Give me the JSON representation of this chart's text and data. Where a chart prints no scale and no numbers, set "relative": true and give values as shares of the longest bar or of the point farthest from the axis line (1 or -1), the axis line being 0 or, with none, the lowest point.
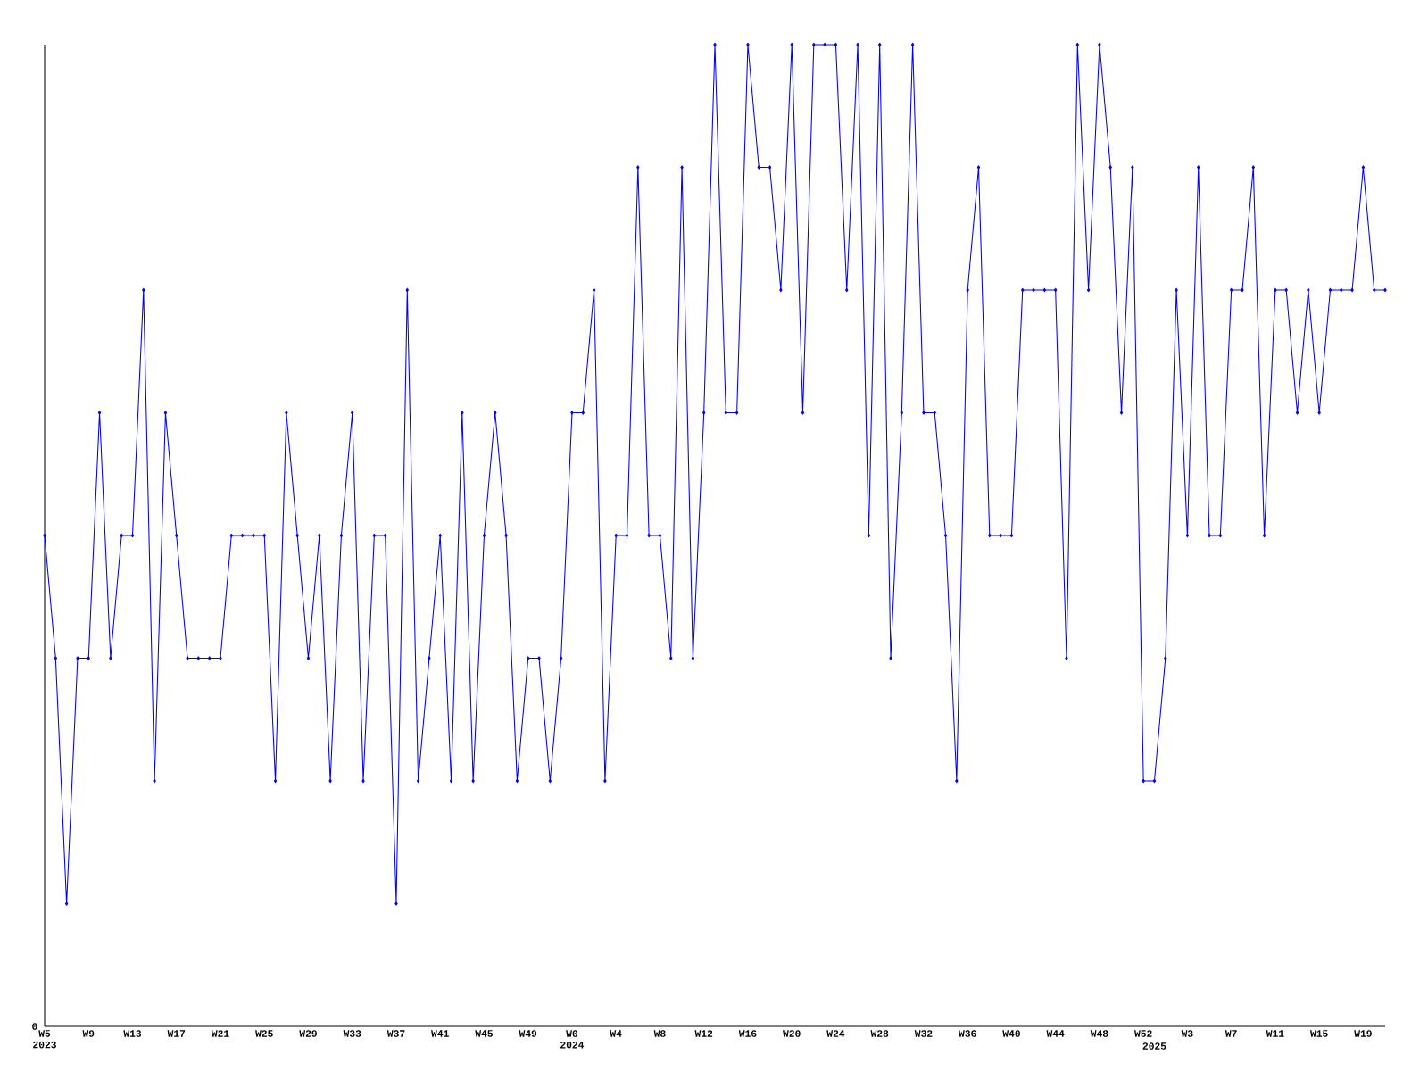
{
  "chart_data": {
    "type": "line",
    "relative": true,
    "color": "#0000ff",
    "marker": "diamond",
    "line_style": "solid",
    "grid": false,
    "annotations": [
      "0"
    ],
    "categories": [
      "W5 2023",
      null,
      null,
      null,
      "W9",
      null,
      null,
      null,
      "W13",
      null,
      null,
      null,
      "W17",
      null,
      null,
      null,
      "W21",
      null,
      null,
      null,
      "W25",
      null,
      null,
      null,
      "W29",
      null,
      null,
      null,
      "W33",
      null,
      null,
      null,
      "W37",
      null,
      null,
      null,
      "W41",
      null,
      null,
      null,
      "W45",
      null,
      null,
      null,
      "W49",
      null,
      null,
      null,
      "W0 2024",
      null,
      null,
      null,
      "W4",
      null,
      null,
      null,
      "W8",
      null,
      null,
      null,
      "W12",
      null,
      null,
      null,
      "W16",
      null,
      null,
      null,
      "W20",
      null,
      null,
      null,
      "W24",
      null,
      null,
      null,
      "W28",
      null,
      null,
      null,
      "W32",
      null,
      null,
      null,
      "W36",
      null,
      null,
      null,
      "W40",
      null,
      null,
      null,
      "W44",
      null,
      null,
      null,
      "W48",
      null,
      null,
      null,
      "W52",
      "2025",
      null,
      null,
      "W3",
      null,
      null,
      null,
      "W7",
      null,
      null,
      null,
      "W11",
      null,
      null,
      null,
      "W15",
      null,
      null,
      null,
      "W19",
      null,
      null
    ],
    "values": [
      0.5,
      0.375,
      0.125,
      0.375,
      0.375,
      0.625,
      0.375,
      0.5,
      0.5,
      0.75,
      0.25,
      0.625,
      0.5,
      0.375,
      0.375,
      0.375,
      0.375,
      0.5,
      0.5,
      0.5,
      0.5,
      0.25,
      0.625,
      0.5,
      0.375,
      0.5,
      0.25,
      0.5,
      0.625,
      0.25,
      0.5,
      0.5,
      0.125,
      0.75,
      0.25,
      0.375,
      0.5,
      0.25,
      0.625,
      0.25,
      0.5,
      0.625,
      0.5,
      0.25,
      0.375,
      0.375,
      0.25,
      0.375,
      0.625,
      0.625,
      0.75,
      0.25,
      0.5,
      0.5,
      0.875,
      0.5,
      0.5,
      0.375,
      0.875,
      0.375,
      0.625,
      1,
      0.625,
      0.625,
      1,
      0.875,
      0.875,
      0.75,
      1,
      0.625,
      1,
      1,
      1,
      0.75,
      1,
      0.5,
      1,
      0.375,
      0.625,
      1,
      0.625,
      0.625,
      0.5,
      0.25,
      0.75,
      0.875,
      0.5,
      0.5,
      0.5,
      0.75,
      0.75,
      0.75,
      0.75,
      0.375,
      1,
      0.75,
      1,
      0.875,
      0.625,
      0.875,
      0.25,
      0.25,
      0.375,
      0.75,
      0.5,
      0.875,
      0.5,
      0.5,
      0.75,
      0.75,
      0.875,
      0.5,
      0.75,
      0.75,
      0.625,
      0.75,
      0.625,
      0.75,
      0.75,
      0.75,
      0.875,
      0.75,
      0.75
    ]
  }
}
